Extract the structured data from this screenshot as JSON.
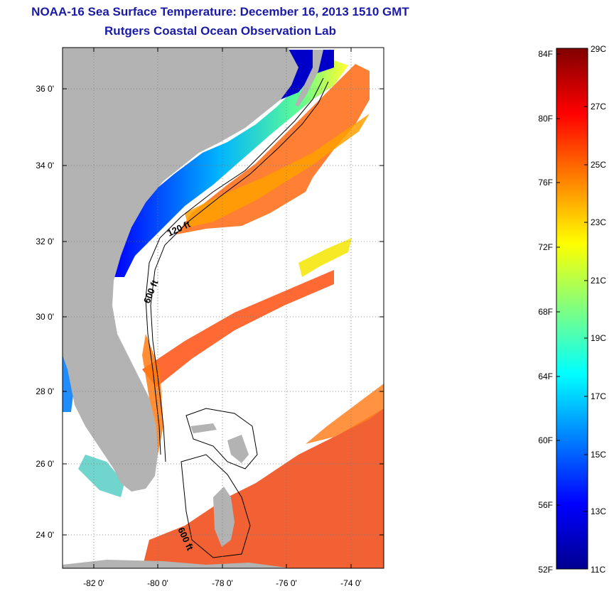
{
  "title_line1": "NOAA-16 Sea Surface Temperature:  December 16, 2013 1510 GMT",
  "title_line2": "Rutgers Coastal Ocean Observation Lab",
  "map": {
    "lat_labels": [
      "36 0'",
      "34 0'",
      "32 0'",
      "30 0'",
      "28 0'",
      "26 0'",
      "24 0'"
    ],
    "lon_labels": [
      "-82 0'",
      "-80 0'",
      "-78 0'",
      "-76 0'",
      "-74 0'"
    ],
    "isobath_labels": [
      "120 ft",
      "600 ft",
      "600 ft"
    ],
    "land_color": "#b3b3b3",
    "frame_color": "#000000"
  },
  "colorbar": {
    "fahrenheit_labels": [
      "84F",
      "80F",
      "76F",
      "72F",
      "68F",
      "64F",
      "60F",
      "56F",
      "52F"
    ],
    "celsius_labels": [
      "29C",
      "27C",
      "25C",
      "23C",
      "21C",
      "19C",
      "17C",
      "15C",
      "13C",
      "11C"
    ],
    "colors_top_to_bottom": [
      "#800000",
      "#ff0000",
      "#ff8000",
      "#ffff00",
      "#80ff80",
      "#00ffff",
      "#0080ff",
      "#0000ff",
      "#00008f"
    ]
  }
}
